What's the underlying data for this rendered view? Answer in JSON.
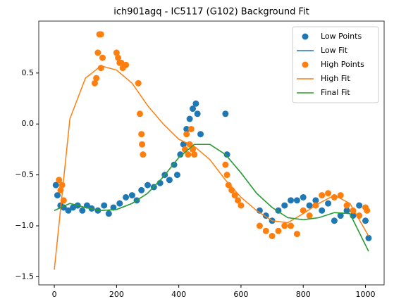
{
  "chart_data": {
    "type": "scatter",
    "title": "ich901agq - IC5117 (G102) Background Fit",
    "xlim": [
      -50,
      1060
    ],
    "ylim": [
      -1.58,
      1.01
    ],
    "xticks": [
      0,
      200,
      400,
      600,
      800,
      1000
    ],
    "yticks": [
      {
        "value": -1.5,
        "label": "−1.5"
      },
      {
        "value": -1.0,
        "label": "−1.0"
      },
      {
        "value": -0.5,
        "label": "−0.5"
      },
      {
        "value": 0.0,
        "label": "0.0"
      },
      0.5
    ],
    "legend": "upper right",
    "series": [
      {
        "name": "Low Points",
        "type": "scatter",
        "color": "#1f77b4",
        "x": [
          5,
          10,
          20,
          30,
          45,
          60,
          75,
          90,
          105,
          120,
          140,
          160,
          175,
          190,
          210,
          230,
          250,
          265,
          280,
          300,
          320,
          340,
          355,
          370,
          385,
          395,
          405,
          415,
          425,
          435,
          445,
          455,
          460,
          470,
          550,
          555,
          660,
          680,
          700,
          720,
          740,
          760,
          780,
          800,
          820,
          840,
          860,
          880,
          900,
          920,
          940,
          960,
          980,
          1000,
          1010
        ],
        "values": [
          -0.6,
          -0.7,
          -0.8,
          -0.82,
          -0.85,
          -0.82,
          -0.8,
          -0.85,
          -0.8,
          -0.83,
          -0.85,
          -0.8,
          -0.88,
          -0.82,
          -0.78,
          -0.72,
          -0.7,
          -0.75,
          -0.65,
          -0.6,
          -0.62,
          -0.58,
          -0.5,
          -0.55,
          -0.4,
          -0.5,
          -0.3,
          -0.2,
          -0.05,
          0.05,
          0.15,
          0.2,
          0.1,
          -0.1,
          0.1,
          -0.3,
          -0.85,
          -0.9,
          -0.95,
          -0.85,
          -0.8,
          -0.75,
          -0.75,
          -0.72,
          -0.8,
          -0.75,
          -0.85,
          -0.78,
          -0.95,
          -0.9,
          -0.85,
          -0.9,
          -0.8,
          -0.95,
          -1.12
        ]
      },
      {
        "name": "Low Fit",
        "type": "line",
        "color": "#1f77b4",
        "x": [
          0,
          50,
          100,
          150,
          200,
          250,
          300,
          350,
          400,
          450,
          500,
          550,
          600,
          650,
          700,
          750,
          800,
          850,
          900,
          950,
          1010
        ],
        "values": [
          -0.85,
          -0.78,
          -0.82,
          -0.85,
          -0.84,
          -0.78,
          -0.68,
          -0.52,
          -0.33,
          -0.2,
          -0.2,
          -0.3,
          -0.48,
          -0.68,
          -0.82,
          -0.92,
          -0.94,
          -0.92,
          -0.87,
          -0.88,
          -1.25
        ]
      },
      {
        "name": "High Points",
        "type": "scatter",
        "color": "#ff7f0e",
        "x": [
          15,
          20,
          25,
          30,
          130,
          135,
          140,
          145,
          150,
          150,
          155,
          200,
          205,
          210,
          215,
          220,
          230,
          270,
          275,
          280,
          282,
          285,
          420,
          425,
          430,
          435,
          440,
          445,
          450,
          550,
          555,
          560,
          570,
          580,
          590,
          600,
          660,
          680,
          700,
          720,
          740,
          760,
          780,
          800,
          820,
          840,
          860,
          880,
          900,
          920,
          940,
          960,
          980,
          1000,
          1005
        ],
        "values": [
          -0.55,
          -0.65,
          -0.6,
          -0.75,
          0.4,
          0.45,
          0.7,
          0.88,
          0.88,
          0.55,
          0.65,
          0.7,
          0.65,
          0.6,
          0.6,
          0.55,
          0.58,
          0.4,
          0.1,
          -0.1,
          -0.2,
          -0.3,
          -0.25,
          -0.1,
          -0.3,
          -0.2,
          -0.05,
          -0.25,
          -0.3,
          -0.4,
          -0.5,
          -0.6,
          -0.65,
          -0.7,
          -0.75,
          -0.8,
          -1.0,
          -1.05,
          -1.1,
          -1.05,
          -1.0,
          -1.0,
          -1.08,
          -0.85,
          -0.9,
          -0.8,
          -0.7,
          -0.68,
          -0.72,
          -0.7,
          -0.8,
          -0.85,
          -0.9,
          -0.82,
          -0.85
        ]
      },
      {
        "name": "High Fit",
        "type": "line",
        "color": "#ff7f0e",
        "x": [
          0,
          50,
          100,
          150,
          200,
          250,
          300,
          350,
          400,
          450,
          500,
          550,
          600,
          650,
          700,
          750,
          800,
          850,
          900,
          950,
          1010
        ],
        "values": [
          -1.43,
          0.05,
          0.45,
          0.57,
          0.53,
          0.4,
          0.18,
          0.0,
          -0.15,
          -0.22,
          -0.35,
          -0.55,
          -0.72,
          -0.85,
          -0.95,
          -0.97,
          -0.88,
          -0.78,
          -0.7,
          -0.78,
          -1.1
        ]
      },
      {
        "name": "Final Fit",
        "type": "line",
        "color": "#2ca02c",
        "x": [
          0,
          50,
          100,
          150,
          200,
          250,
          300,
          350,
          400,
          450,
          500,
          550,
          600,
          650,
          700,
          750,
          800,
          850,
          900,
          950,
          1010
        ],
        "values": [
          -0.85,
          -0.78,
          -0.82,
          -0.85,
          -0.84,
          -0.78,
          -0.68,
          -0.52,
          -0.33,
          -0.2,
          -0.2,
          -0.3,
          -0.48,
          -0.68,
          -0.82,
          -0.92,
          -0.94,
          -0.92,
          -0.87,
          -0.88,
          -1.25
        ]
      }
    ]
  }
}
